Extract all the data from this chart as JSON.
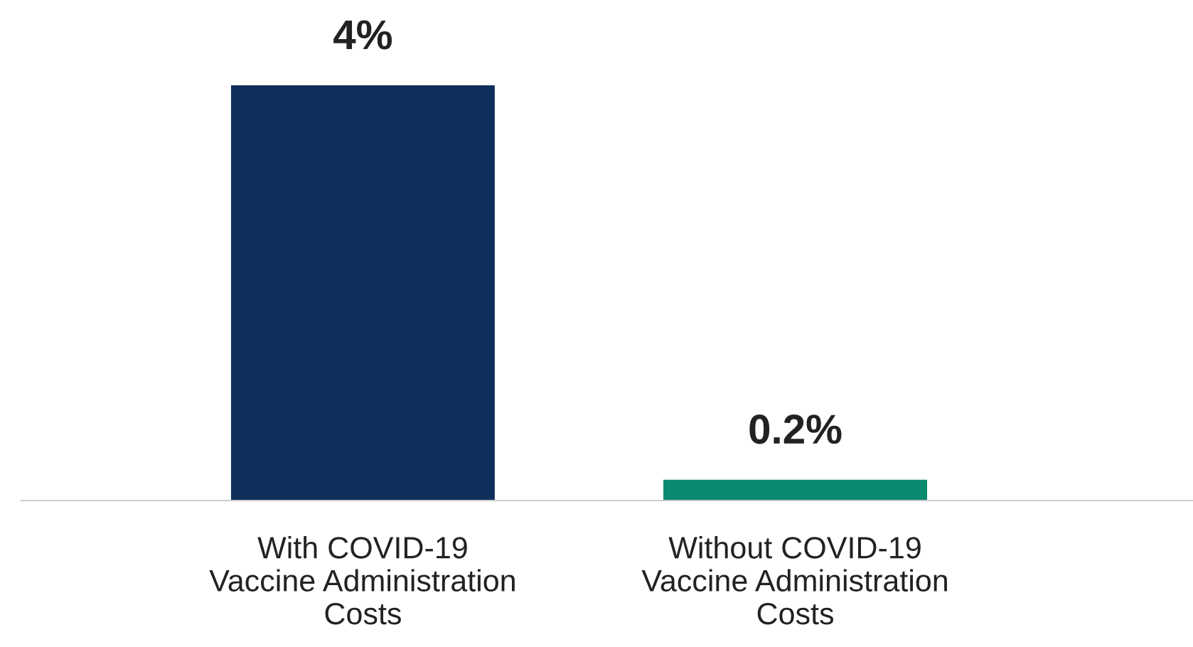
{
  "chart_data": {
    "type": "bar",
    "categories": [
      "With COVID-19\nVaccine Administration\nCosts",
      "Without COVID-19\nVaccine Administration\nCosts"
    ],
    "values": [
      4,
      0.2
    ],
    "colors": [
      "#0e2f5a",
      "#0a8a6e"
    ],
    "value_labels": [
      "4%",
      "0.2%"
    ],
    "grid": false,
    "legend": false,
    "tick_labels": "x"
  }
}
